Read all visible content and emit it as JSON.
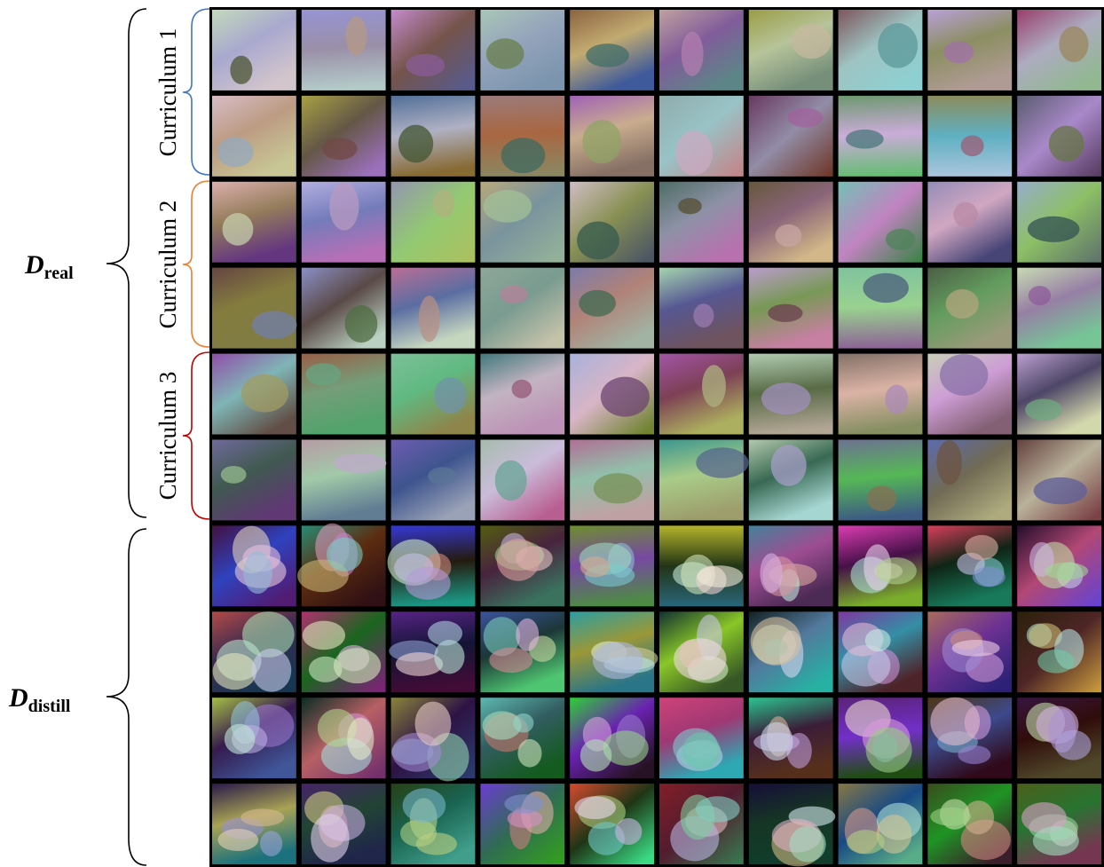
{
  "labels": {
    "real": {
      "main": "D",
      "sub": "real"
    },
    "distill": {
      "main": "D",
      "sub": "distill"
    }
  },
  "curricula": [
    "Curriculum 1",
    "Curriculum 2",
    "Curriculum 3"
  ]
}
